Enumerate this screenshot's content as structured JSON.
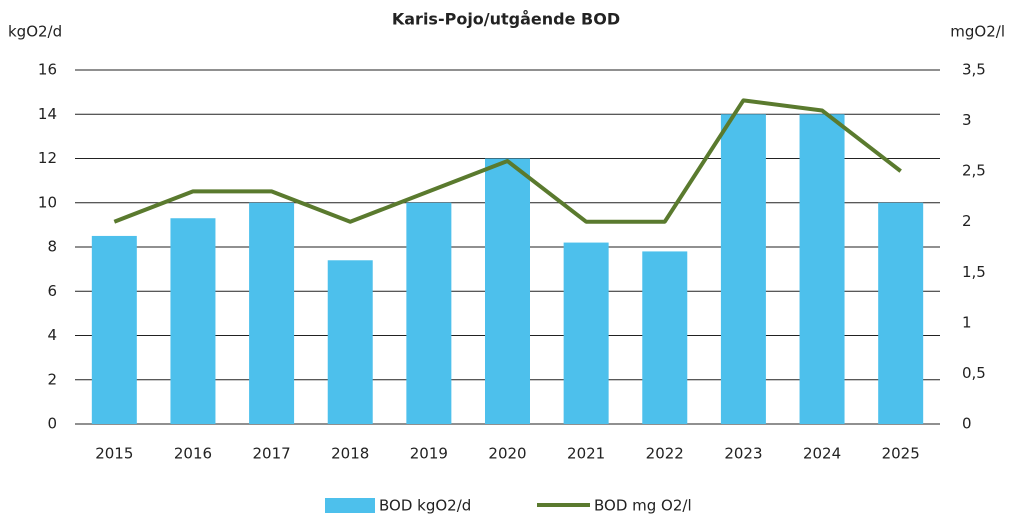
{
  "chart_data": {
    "type": "bar_line",
    "title": "Karis-Pojo/utgående BOD",
    "y_label": "kgO2/d",
    "y2_label": "mgO2/l",
    "categories": [
      "2015",
      "2016",
      "2017",
      "2018",
      "2019",
      "2020",
      "2021",
      "2022",
      "2023",
      "2024",
      "2025"
    ],
    "series": [
      {
        "name": "BOD kgO2/d",
        "type": "bar",
        "color": "#4dc0ec",
        "values": [
          8.5,
          9.3,
          10,
          7.4,
          10,
          12,
          8.2,
          7.8,
          14,
          14,
          10
        ]
      },
      {
        "name": "BOD mg O2/l",
        "type": "line",
        "axis": "y2",
        "color": "#5a7a2e",
        "values": [
          2.0,
          2.3,
          2.3,
          2.0,
          2.3,
          2.6,
          2.0,
          2.0,
          3.2,
          3.1,
          2.5
        ]
      }
    ],
    "ylim": [
      0,
      16
    ],
    "yticks": [
      0,
      2,
      4,
      6,
      8,
      10,
      12,
      14,
      16
    ],
    "y2lim": [
      0,
      3.5
    ],
    "y2ticks": [
      0,
      {
        "value": 0.5,
        "label": "0,5"
      },
      1,
      {
        "value": 1.5,
        "label": "1,5"
      },
      2,
      {
        "value": 2.5,
        "label": "2,5"
      },
      3,
      {
        "value": 3.5,
        "label": "3,5"
      }
    ],
    "grid": true,
    "legend": "bottom"
  }
}
